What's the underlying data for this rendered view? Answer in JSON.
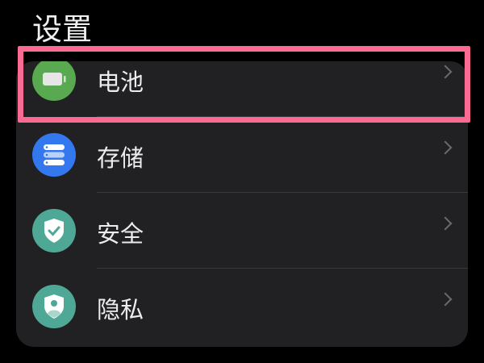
{
  "header": {
    "title": "设置"
  },
  "items": [
    {
      "label": "电池",
      "icon": "battery-icon",
      "color": "#58a94f"
    },
    {
      "label": "存储",
      "icon": "storage-icon",
      "color": "#3478f0"
    },
    {
      "label": "安全",
      "icon": "shield-check-icon",
      "color": "#4fa896"
    },
    {
      "label": "隐私",
      "icon": "shield-person-icon",
      "color": "#4fa896"
    }
  ],
  "highlight": {
    "color": "#fb6a92",
    "target": "电池"
  }
}
